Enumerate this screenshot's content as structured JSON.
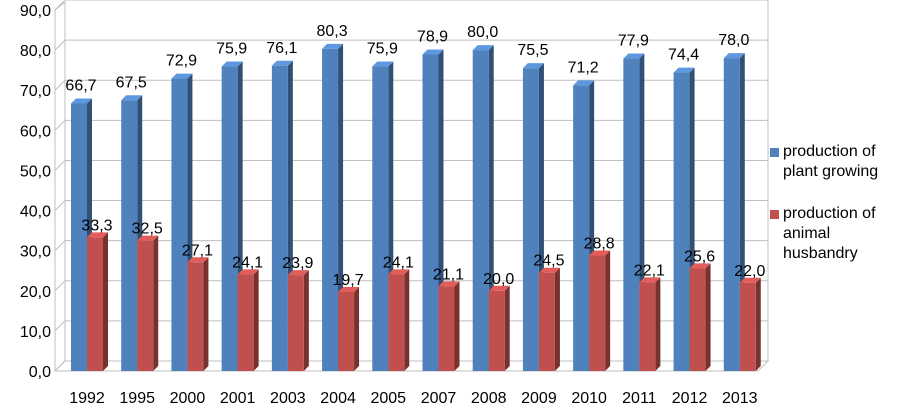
{
  "chart_data": {
    "type": "bar",
    "categories": [
      "1992",
      "1995",
      "2000",
      "2001",
      "2003",
      "2004",
      "2005",
      "2007",
      "2008",
      "2009",
      "2010",
      "2011",
      "2012",
      "2013"
    ],
    "series": [
      {
        "name": "production of\nplant growing",
        "color": "#4f81bd",
        "values": [
          66.7,
          67.5,
          72.9,
          75.9,
          76.1,
          80.3,
          75.9,
          78.9,
          80.0,
          75.5,
          71.2,
          77.9,
          74.4,
          78.0
        ],
        "labels": [
          "66,7",
          "67,5",
          "72,9",
          "75,9",
          "76,1",
          "80,3",
          "75,9",
          "78,9",
          "80,0",
          "75,5",
          "71,2",
          "77,9",
          "74,4",
          "78,0"
        ]
      },
      {
        "name": " production of\nanimal\nhusbandry",
        "color": "#c0504d",
        "values": [
          33.3,
          32.5,
          27.1,
          24.1,
          23.9,
          19.7,
          24.1,
          21.1,
          20.0,
          24.5,
          28.8,
          22.1,
          25.6,
          22.0
        ],
        "labels": [
          "33,3",
          "32,5",
          "27,1",
          "24,1",
          "23,9",
          "19,7",
          "24,1",
          "21,1",
          "20,0",
          "24,5",
          "28,8",
          "22,1",
          "25,6",
          "22,0"
        ]
      }
    ],
    "ylim": [
      0,
      90
    ],
    "yticks": [
      "0,0",
      "10,0",
      "20,0",
      "30,0",
      "40,0",
      "50,0",
      "60,0",
      "70,0",
      "80,0",
      "90,0"
    ],
    "grid": true,
    "legend": "right"
  }
}
